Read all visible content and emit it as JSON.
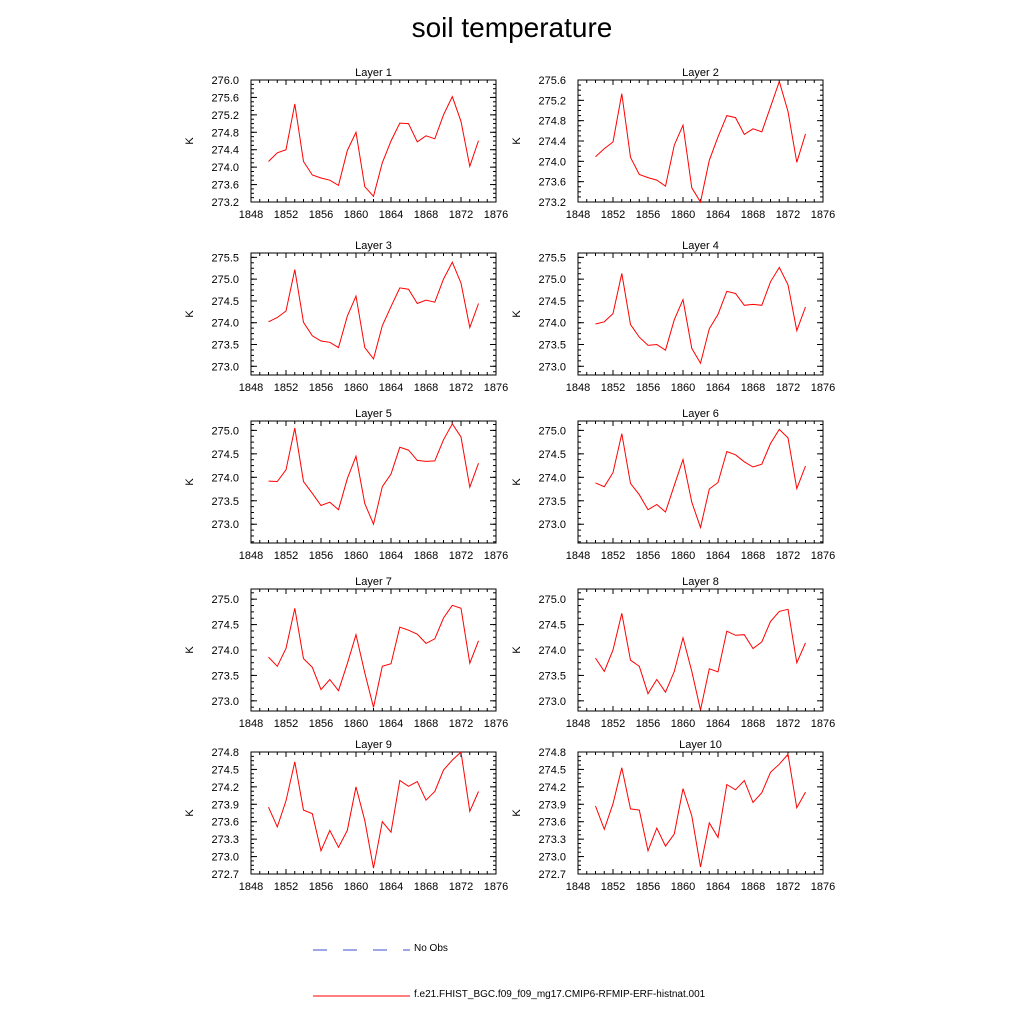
{
  "title": "soil temperature",
  "colors": {
    "model_line": "#ff0000",
    "obs_line": "#3b4fd1",
    "axis": "#000000"
  },
  "legend": {
    "obs_label": "No Obs",
    "model_label": "f.e21.FHIST_BGC.f09_f09_mg17.CMIP6-RFMIP-ERF-histnat.001"
  },
  "chart_data": [
    {
      "type": "line",
      "title": "Layer 1",
      "xlabel": "",
      "ylabel": "K",
      "xlim": [
        1848,
        1876
      ],
      "ylim": [
        273.2,
        276.0
      ],
      "xticks": [
        "1848",
        "1852",
        "1856",
        "1860",
        "1864",
        "1868",
        "1872",
        "1876"
      ],
      "yticks": [
        "273.2",
        "273.6",
        "274.0",
        "274.4",
        "274.8",
        "275.2",
        "275.6",
        "276.0"
      ],
      "x": [
        1850,
        1851,
        1852,
        1853,
        1854,
        1855,
        1856,
        1857,
        1858,
        1859,
        1860,
        1861,
        1862,
        1863,
        1864,
        1865,
        1866,
        1867,
        1868,
        1869,
        1870,
        1871,
        1872,
        1873,
        1874
      ],
      "series": [
        {
          "values": [
            274.13,
            274.33,
            274.4,
            275.45,
            274.13,
            273.82,
            273.75,
            273.7,
            273.58,
            274.38,
            274.8,
            273.55,
            273.33,
            274.1,
            274.6,
            275.01,
            275.0,
            274.58,
            274.72,
            274.65,
            275.2,
            275.62,
            275.05,
            274.02,
            274.61
          ]
        }
      ],
      "grid": false
    },
    {
      "type": "line",
      "title": "Layer 2",
      "xlabel": "",
      "ylabel": "K",
      "xlim": [
        1848,
        1876
      ],
      "ylim": [
        273.2,
        275.6
      ],
      "xticks": [
        "1848",
        "1852",
        "1856",
        "1860",
        "1864",
        "1868",
        "1872",
        "1876"
      ],
      "yticks": [
        "273.2",
        "273.6",
        "274.0",
        "274.4",
        "274.8",
        "275.2",
        "275.6"
      ],
      "x": [
        1850,
        1851,
        1852,
        1853,
        1854,
        1855,
        1856,
        1857,
        1858,
        1859,
        1860,
        1861,
        1862,
        1863,
        1864,
        1865,
        1866,
        1867,
        1868,
        1869,
        1870,
        1871,
        1872,
        1873,
        1874
      ],
      "series": [
        {
          "values": [
            274.09,
            274.25,
            274.38,
            275.33,
            274.08,
            273.74,
            273.68,
            273.63,
            273.51,
            274.32,
            274.71,
            273.48,
            273.2,
            274.02,
            274.48,
            274.9,
            274.86,
            274.53,
            274.64,
            274.58,
            275.07,
            275.57,
            274.98,
            273.98,
            274.54
          ]
        }
      ],
      "grid": false
    },
    {
      "type": "line",
      "title": "Layer 3",
      "xlabel": "",
      "ylabel": "K",
      "xlim": [
        1848,
        1876
      ],
      "ylim": [
        272.8,
        275.6
      ],
      "xticks": [
        "1848",
        "1852",
        "1856",
        "1860",
        "1864",
        "1868",
        "1872",
        "1876"
      ],
      "yticks": [
        "273.0",
        "273.5",
        "274.0",
        "274.5",
        "275.0",
        "275.5"
      ],
      "x": [
        1850,
        1851,
        1852,
        1853,
        1854,
        1855,
        1856,
        1857,
        1858,
        1859,
        1860,
        1861,
        1862,
        1863,
        1864,
        1865,
        1866,
        1867,
        1868,
        1869,
        1870,
        1871,
        1872,
        1873,
        1874
      ],
      "series": [
        {
          "values": [
            274.02,
            274.12,
            274.27,
            275.22,
            274.01,
            273.7,
            273.58,
            273.55,
            273.43,
            274.15,
            274.61,
            273.43,
            273.17,
            273.93,
            274.37,
            274.8,
            274.77,
            274.44,
            274.52,
            274.47,
            275.0,
            275.39,
            274.91,
            273.89,
            274.44
          ]
        }
      ],
      "grid": false
    },
    {
      "type": "line",
      "title": "Layer 4",
      "xlabel": "",
      "ylabel": "K",
      "xlim": [
        1848,
        1876
      ],
      "ylim": [
        272.8,
        275.6
      ],
      "xticks": [
        "1848",
        "1852",
        "1856",
        "1860",
        "1864",
        "1868",
        "1872",
        "1876"
      ],
      "yticks": [
        "273.0",
        "273.5",
        "274.0",
        "274.5",
        "275.0",
        "275.5"
      ],
      "x": [
        1850,
        1851,
        1852,
        1853,
        1854,
        1855,
        1856,
        1857,
        1858,
        1859,
        1860,
        1861,
        1862,
        1863,
        1864,
        1865,
        1866,
        1867,
        1868,
        1869,
        1870,
        1871,
        1872,
        1873,
        1874
      ],
      "series": [
        {
          "values": [
            273.97,
            274.02,
            274.21,
            275.13,
            273.96,
            273.67,
            273.48,
            273.5,
            273.37,
            274.07,
            274.53,
            273.41,
            273.07,
            273.86,
            274.19,
            274.72,
            274.67,
            274.4,
            274.42,
            274.4,
            274.94,
            275.27,
            274.87,
            273.82,
            274.36
          ]
        }
      ],
      "grid": false
    },
    {
      "type": "line",
      "title": "Layer 5",
      "xlabel": "",
      "ylabel": "K",
      "xlim": [
        1848,
        1876
      ],
      "ylim": [
        272.6,
        275.2
      ],
      "xticks": [
        "1848",
        "1852",
        "1856",
        "1860",
        "1864",
        "1868",
        "1872",
        "1876"
      ],
      "yticks": [
        "273.0",
        "273.5",
        "274.0",
        "274.5",
        "275.0"
      ],
      "x": [
        1850,
        1851,
        1852,
        1853,
        1854,
        1855,
        1856,
        1857,
        1858,
        1859,
        1860,
        1861,
        1862,
        1863,
        1864,
        1865,
        1866,
        1867,
        1868,
        1869,
        1870,
        1871,
        1872,
        1873,
        1874
      ],
      "series": [
        {
          "values": [
            273.92,
            273.91,
            274.16,
            275.05,
            273.91,
            273.66,
            273.4,
            273.47,
            273.31,
            273.97,
            274.45,
            273.44,
            273.0,
            273.8,
            274.07,
            274.64,
            274.58,
            274.36,
            274.34,
            274.35,
            274.8,
            275.14,
            274.86,
            273.79,
            274.3
          ]
        }
      ],
      "grid": false
    },
    {
      "type": "line",
      "title": "Layer 6",
      "xlabel": "",
      "ylabel": "K",
      "xlim": [
        1848,
        1876
      ],
      "ylim": [
        272.6,
        275.2
      ],
      "xticks": [
        "1848",
        "1852",
        "1856",
        "1860",
        "1864",
        "1868",
        "1872",
        "1876"
      ],
      "yticks": [
        "273.0",
        "273.5",
        "274.0",
        "274.5",
        "275.0"
      ],
      "x": [
        1850,
        1851,
        1852,
        1853,
        1854,
        1855,
        1856,
        1857,
        1858,
        1859,
        1860,
        1861,
        1862,
        1863,
        1864,
        1865,
        1866,
        1867,
        1868,
        1869,
        1870,
        1871,
        1872,
        1873,
        1874
      ],
      "series": [
        {
          "values": [
            273.88,
            273.8,
            274.1,
            274.93,
            273.87,
            273.63,
            273.31,
            273.42,
            273.26,
            273.83,
            274.38,
            273.47,
            272.93,
            273.75,
            273.89,
            274.55,
            274.48,
            274.33,
            274.22,
            274.28,
            274.72,
            275.02,
            274.84,
            273.76,
            274.24
          ]
        }
      ],
      "grid": false
    },
    {
      "type": "line",
      "title": "Layer 7",
      "xlabel": "",
      "ylabel": "K",
      "xlim": [
        1848,
        1876
      ],
      "ylim": [
        272.8,
        275.2
      ],
      "xticks": [
        "1848",
        "1852",
        "1856",
        "1860",
        "1864",
        "1868",
        "1872",
        "1876"
      ],
      "yticks": [
        "273.0",
        "273.5",
        "274.0",
        "274.5",
        "275.0"
      ],
      "x": [
        1850,
        1851,
        1852,
        1853,
        1854,
        1855,
        1856,
        1857,
        1858,
        1859,
        1860,
        1861,
        1862,
        1863,
        1864,
        1865,
        1866,
        1867,
        1868,
        1869,
        1870,
        1871,
        1872,
        1873,
        1874
      ],
      "series": [
        {
          "values": [
            273.86,
            273.68,
            274.03,
            274.82,
            273.83,
            273.66,
            273.22,
            273.42,
            273.2,
            273.73,
            274.3,
            273.55,
            272.87,
            273.68,
            273.73,
            274.45,
            274.39,
            274.31,
            274.13,
            274.22,
            274.63,
            274.88,
            274.82,
            273.74,
            274.18
          ]
        }
      ],
      "grid": false
    },
    {
      "type": "line",
      "title": "Layer 8",
      "xlabel": "",
      "ylabel": "K",
      "xlim": [
        1848,
        1876
      ],
      "ylim": [
        272.8,
        275.2
      ],
      "xticks": [
        "1848",
        "1852",
        "1856",
        "1860",
        "1864",
        "1868",
        "1872",
        "1876"
      ],
      "yticks": [
        "273.0",
        "273.5",
        "274.0",
        "274.5",
        "275.0"
      ],
      "x": [
        1850,
        1851,
        1852,
        1853,
        1854,
        1855,
        1856,
        1857,
        1858,
        1859,
        1860,
        1861,
        1862,
        1863,
        1864,
        1865,
        1866,
        1867,
        1868,
        1869,
        1870,
        1871,
        1872,
        1873,
        1874
      ],
      "series": [
        {
          "values": [
            273.84,
            273.58,
            274.0,
            274.72,
            273.8,
            273.68,
            273.14,
            273.42,
            273.17,
            273.58,
            274.24,
            273.58,
            272.82,
            273.63,
            273.57,
            274.37,
            274.29,
            274.3,
            274.03,
            274.16,
            274.56,
            274.76,
            274.8,
            273.75,
            274.14
          ]
        }
      ],
      "grid": false
    },
    {
      "type": "line",
      "title": "Layer 9",
      "xlabel": "",
      "ylabel": "K",
      "xlim": [
        1848,
        1876
      ],
      "ylim": [
        272.7,
        274.8
      ],
      "xticks": [
        "1848",
        "1852",
        "1856",
        "1860",
        "1864",
        "1868",
        "1872",
        "1876"
      ],
      "yticks": [
        "272.7",
        "273.0",
        "273.3",
        "273.6",
        "273.9",
        "274.2",
        "274.5",
        "274.8"
      ],
      "x": [
        1850,
        1851,
        1852,
        1853,
        1854,
        1855,
        1856,
        1857,
        1858,
        1859,
        1860,
        1861,
        1862,
        1863,
        1864,
        1865,
        1866,
        1867,
        1868,
        1869,
        1870,
        1871,
        1872,
        1873,
        1874
      ],
      "series": [
        {
          "values": [
            273.85,
            273.51,
            273.96,
            274.63,
            273.8,
            273.74,
            273.1,
            273.45,
            273.16,
            273.45,
            274.2,
            273.62,
            272.8,
            273.6,
            273.42,
            274.31,
            274.21,
            274.29,
            273.97,
            274.12,
            274.49,
            274.66,
            274.8,
            273.78,
            274.12
          ]
        }
      ],
      "grid": false
    },
    {
      "type": "line",
      "title": "Layer 10",
      "xlabel": "",
      "ylabel": "K",
      "xlim": [
        1848,
        1876
      ],
      "ylim": [
        272.7,
        274.8
      ],
      "xticks": [
        "1848",
        "1852",
        "1856",
        "1860",
        "1864",
        "1868",
        "1872",
        "1876"
      ],
      "yticks": [
        "272.7",
        "273.0",
        "273.3",
        "273.6",
        "273.9",
        "274.2",
        "274.5",
        "274.8"
      ],
      "x": [
        1850,
        1851,
        1852,
        1853,
        1854,
        1855,
        1856,
        1857,
        1858,
        1859,
        1860,
        1861,
        1862,
        1863,
        1864,
        1865,
        1866,
        1867,
        1868,
        1869,
        1870,
        1871,
        1872,
        1873,
        1874
      ],
      "series": [
        {
          "values": [
            273.87,
            273.47,
            273.91,
            274.53,
            273.82,
            273.8,
            273.1,
            273.49,
            273.18,
            273.39,
            274.17,
            273.7,
            272.82,
            273.58,
            273.33,
            274.24,
            274.15,
            274.31,
            273.93,
            274.1,
            274.45,
            274.59,
            274.76,
            273.84,
            274.11
          ]
        }
      ],
      "grid": false
    }
  ]
}
